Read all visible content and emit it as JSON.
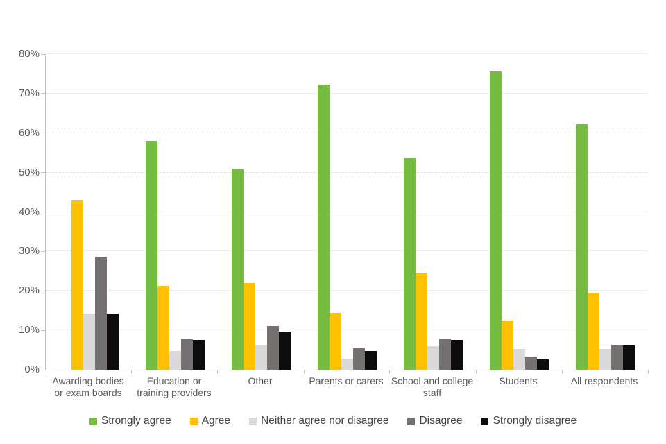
{
  "chart_data": {
    "type": "bar",
    "title": "",
    "xlabel": "",
    "ylabel": "",
    "categories": [
      "Awarding bodies\nor exam boards",
      "Education or\ntraining providers",
      "Other",
      "Parents or carers",
      "School and college\nstaff",
      "Students",
      "All respondents"
    ],
    "series": [
      {
        "name": "Strongly agree",
        "color": "#76bc43",
        "values": [
          0,
          58.1,
          51.0,
          72.2,
          53.6,
          75.6,
          62.3
        ]
      },
      {
        "name": "Agree",
        "color": "#ffc000",
        "values": [
          42.9,
          21.3,
          21.9,
          14.4,
          24.5,
          12.5,
          19.6
        ]
      },
      {
        "name": "Neither agree nor disagree",
        "color": "#d9d9d9",
        "values": [
          14.3,
          4.8,
          6.3,
          2.9,
          5.9,
          5.3,
          5.2
        ]
      },
      {
        "name": "Disagree",
        "color": "#767171",
        "values": [
          28.6,
          7.9,
          11.0,
          5.5,
          8.0,
          3.1,
          6.4
        ]
      },
      {
        "name": "Strongly disagree",
        "color": "#0d0d0d",
        "values": [
          14.3,
          7.6,
          9.6,
          4.8,
          7.6,
          2.7,
          6.1
        ]
      }
    ],
    "ylim": [
      0,
      80
    ],
    "ytick_step": 10,
    "yticks": [
      "0%",
      "10%",
      "20%",
      "30%",
      "40%",
      "50%",
      "60%",
      "70%",
      "80%"
    ],
    "grid": "horizontal-dotted",
    "legend_position": "bottom"
  },
  "colors": {
    "background": "#ffffff",
    "axis_line": "#bfbfbf",
    "gridline": "#d9d9d9",
    "tick_label_text": "#595959",
    "legend_text": "#444444"
  }
}
